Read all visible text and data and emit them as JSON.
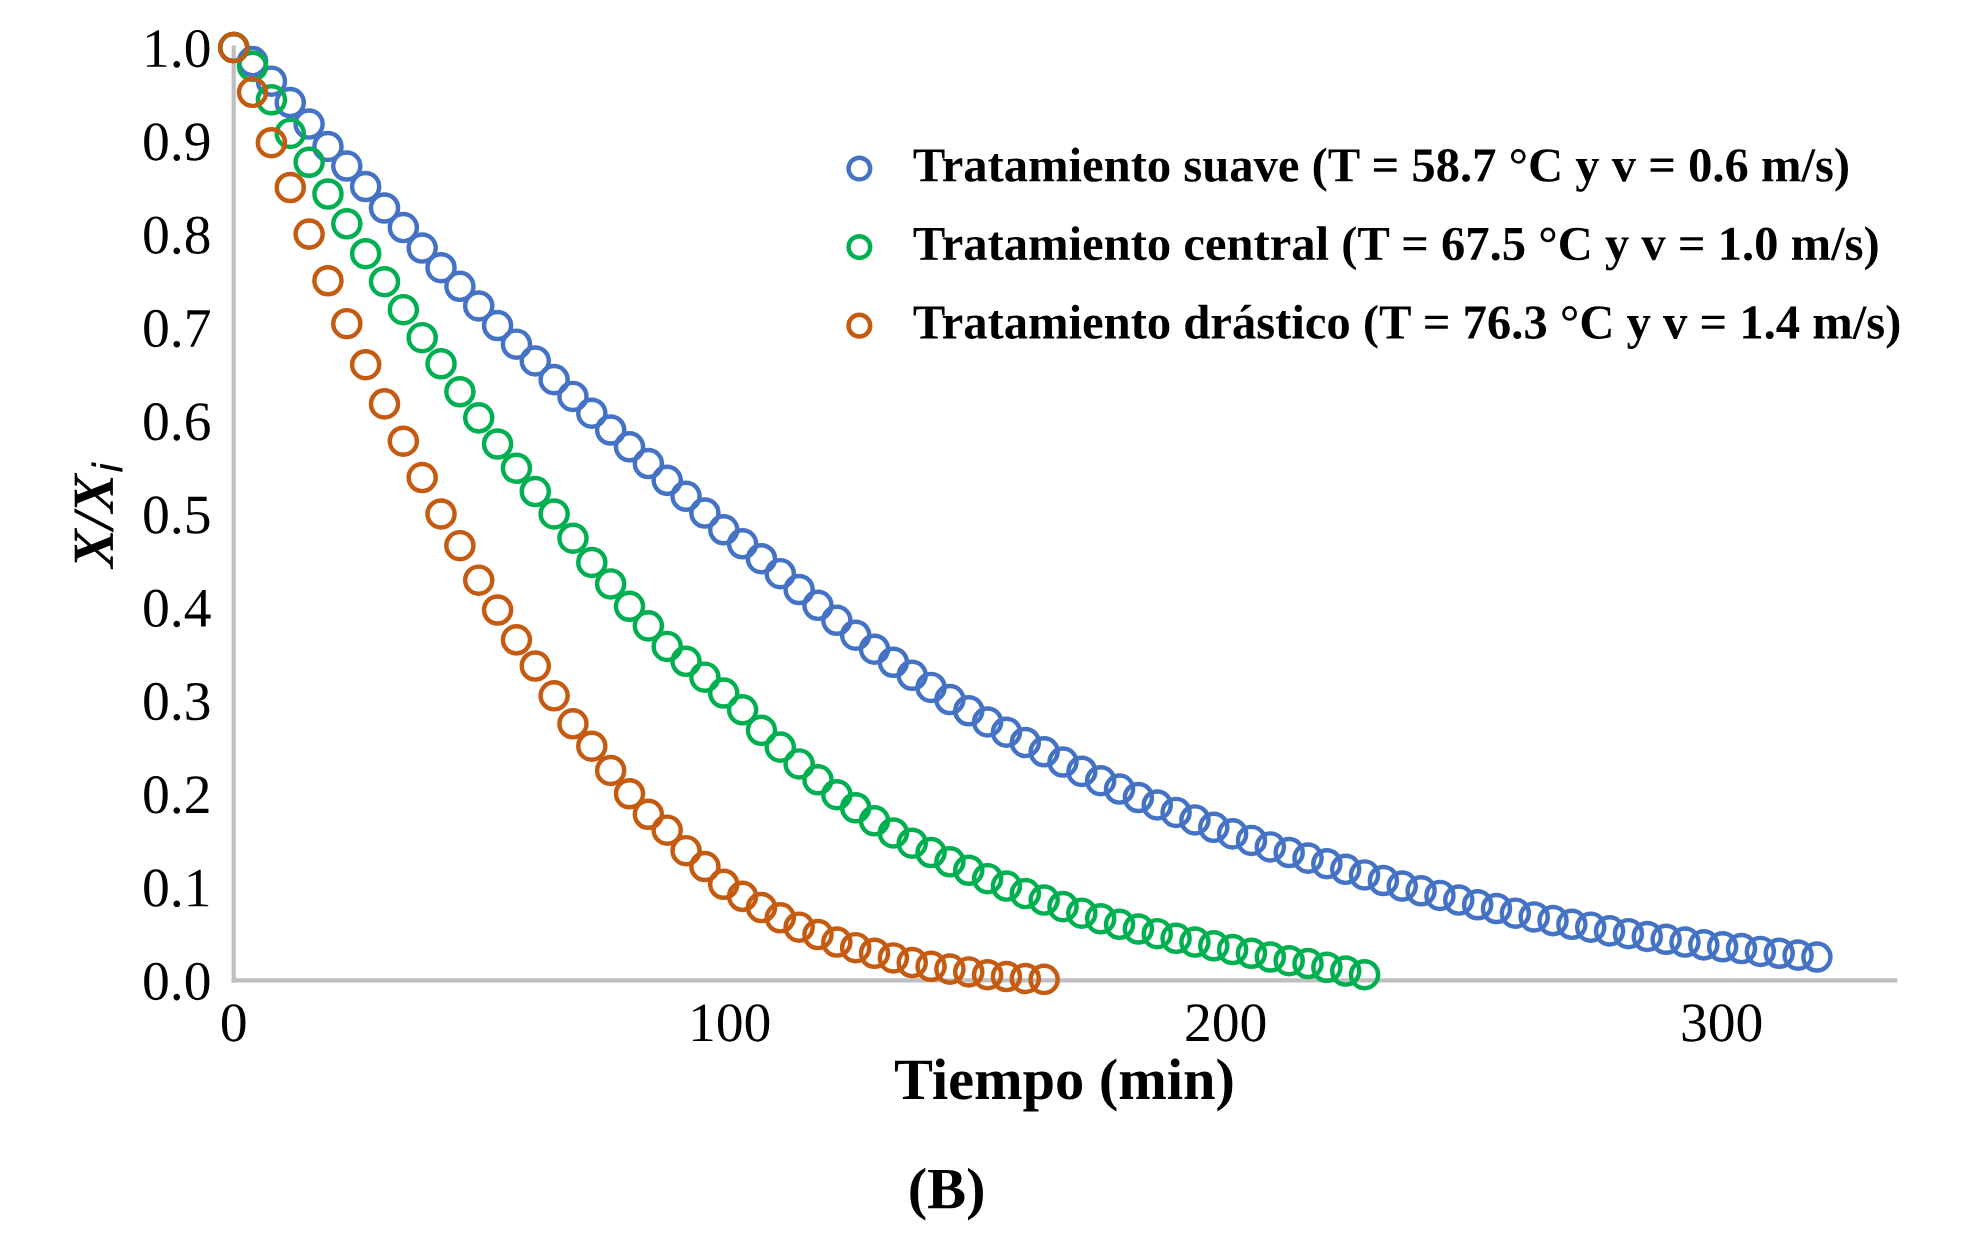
{
  "chart_data": {
    "type": "scatter",
    "xlabel": "Tiempo (min)",
    "ylabel": "X/X$_{i}$",
    "annotations": [
      "(B)"
    ],
    "xlim": [
      0,
      335
    ],
    "xticks": [
      0,
      100,
      200,
      300
    ],
    "ylim": [
      0,
      1.0
    ],
    "yticks": [
      {
        "value": 0,
        "label": "0.0"
      },
      {
        "value": 0.1,
        "label": "0.1"
      },
      {
        "value": 0.2,
        "label": "0.2"
      },
      {
        "value": 0.3,
        "label": "0.3"
      },
      {
        "value": 0.4,
        "label": "0.4"
      },
      {
        "value": 0.5,
        "label": "0.5"
      },
      {
        "value": 0.6,
        "label": "0.6"
      },
      {
        "value": 0.7,
        "label": "0.7"
      },
      {
        "value": 0.8,
        "label": "0.8"
      },
      {
        "value": 0.9,
        "label": "0.9"
      },
      {
        "value": 1.0,
        "label": "1.0"
      }
    ],
    "grid": false,
    "legend": "top right",
    "marker": "circle",
    "series": [
      {
        "name": "Tratamiento suave (T = 58.7 °C y v = 0.6 m/s)",
        "color": "#4472c4",
        "x": [
          0,
          3.8,
          7.6,
          11.4,
          15.2,
          19,
          22.8,
          26.6,
          30.4,
          34.2,
          38,
          41.8,
          45.6,
          49.4,
          53.2,
          57,
          60.8,
          64.6,
          68.4,
          72.2,
          76,
          79.8,
          83.6,
          87.4,
          91.2,
          95,
          98.8,
          102.6,
          106.4,
          110.2,
          114,
          117.8,
          121.6,
          125.4,
          129.2,
          133,
          136.8,
          140.6,
          144.4,
          148.2,
          152,
          155.8,
          159.6,
          163.4,
          167.2,
          171,
          174.8,
          178.6,
          182.4,
          186.2,
          190,
          193.8,
          197.6,
          201.4,
          205.2,
          209,
          212.8,
          216.6,
          220.4,
          224.2,
          228,
          231.8,
          235.6,
          239.4,
          243.2,
          247,
          250.8,
          254.6,
          258.4,
          262.2,
          266,
          269.8,
          273.6,
          277.4,
          281.2,
          285,
          288.8,
          292.6,
          296.4,
          300.2,
          304,
          307.8,
          311.6,
          315.4,
          319.2
        ],
        "values": [
          1.0,
          0.985,
          0.964,
          0.941,
          0.918,
          0.894,
          0.873,
          0.851,
          0.828,
          0.807,
          0.785,
          0.764,
          0.744,
          0.723,
          0.702,
          0.682,
          0.664,
          0.644,
          0.626,
          0.608,
          0.59,
          0.572,
          0.554,
          0.536,
          0.519,
          0.501,
          0.483,
          0.468,
          0.452,
          0.436,
          0.419,
          0.402,
          0.386,
          0.37,
          0.355,
          0.341,
          0.327,
          0.314,
          0.301,
          0.289,
          0.277,
          0.266,
          0.255,
          0.245,
          0.234,
          0.224,
          0.214,
          0.205,
          0.196,
          0.188,
          0.18,
          0.172,
          0.164,
          0.157,
          0.15,
          0.143,
          0.137,
          0.131,
          0.125,
          0.119,
          0.113,
          0.107,
          0.101,
          0.096,
          0.091,
          0.086,
          0.081,
          0.077,
          0.072,
          0.068,
          0.064,
          0.06,
          0.057,
          0.053,
          0.05,
          0.047,
          0.044,
          0.041,
          0.038,
          0.036,
          0.034,
          0.031,
          0.029,
          0.027,
          0.025
        ]
      },
      {
        "name": "Tratamiento central (T = 67.5 °C y v = 1.0 m/s)",
        "color": "#00b050",
        "x": [
          0,
          3.8,
          7.6,
          11.4,
          15.2,
          19,
          22.8,
          26.6,
          30.4,
          34.2,
          38,
          41.8,
          45.6,
          49.4,
          53.2,
          57,
          60.8,
          64.6,
          68.4,
          72.2,
          76,
          79.8,
          83.6,
          87.4,
          91.2,
          95,
          98.8,
          102.6,
          106.4,
          110.2,
          114,
          117.8,
          121.6,
          125.4,
          129.2,
          133,
          136.8,
          140.6,
          144.4,
          148.2,
          152,
          155.8,
          159.6,
          163.4,
          167.2,
          171,
          174.8,
          178.6,
          182.4,
          186.2,
          190,
          193.8,
          197.6,
          201.4,
          205.2,
          209,
          212.8,
          216.6,
          220.4,
          224.2,
          228
        ],
        "values": [
          1.0,
          0.98,
          0.944,
          0.908,
          0.877,
          0.843,
          0.811,
          0.779,
          0.749,
          0.719,
          0.689,
          0.661,
          0.631,
          0.603,
          0.575,
          0.549,
          0.524,
          0.5,
          0.474,
          0.448,
          0.425,
          0.401,
          0.38,
          0.358,
          0.342,
          0.325,
          0.308,
          0.29,
          0.268,
          0.25,
          0.232,
          0.215,
          0.199,
          0.185,
          0.171,
          0.158,
          0.147,
          0.137,
          0.127,
          0.118,
          0.109,
          0.101,
          0.093,
          0.086,
          0.079,
          0.072,
          0.066,
          0.06,
          0.055,
          0.05,
          0.045,
          0.041,
          0.037,
          0.033,
          0.029,
          0.025,
          0.021,
          0.018,
          0.014,
          0.01,
          0.006
        ]
      },
      {
        "name": "Tratamiento drástico (T = 76.3 °C y v = 1.4 m/s)",
        "color": "#c55a11",
        "x": [
          0,
          3.8,
          7.6,
          11.4,
          15.2,
          19,
          22.8,
          26.6,
          30.4,
          34.2,
          38,
          41.8,
          45.6,
          49.4,
          53.2,
          57,
          60.8,
          64.6,
          68.4,
          72.2,
          76,
          79.8,
          83.6,
          87.4,
          91.2,
          95,
          98.8,
          102.6,
          106.4,
          110.2,
          114,
          117.8,
          121.6,
          125.4,
          129.2,
          133,
          136.8,
          140.6,
          144.4,
          148.2,
          152,
          155.8,
          159.6,
          163.4
        ],
        "values": [
          1.0,
          0.952,
          0.898,
          0.85,
          0.8,
          0.75,
          0.704,
          0.66,
          0.618,
          0.578,
          0.539,
          0.5,
          0.466,
          0.429,
          0.397,
          0.365,
          0.337,
          0.305,
          0.275,
          0.251,
          0.225,
          0.2,
          0.178,
          0.161,
          0.139,
          0.122,
          0.103,
          0.09,
          0.078,
          0.067,
          0.057,
          0.049,
          0.041,
          0.035,
          0.029,
          0.024,
          0.019,
          0.015,
          0.012,
          0.009,
          0.006,
          0.004,
          0.002,
          0.001
        ]
      }
    ]
  }
}
